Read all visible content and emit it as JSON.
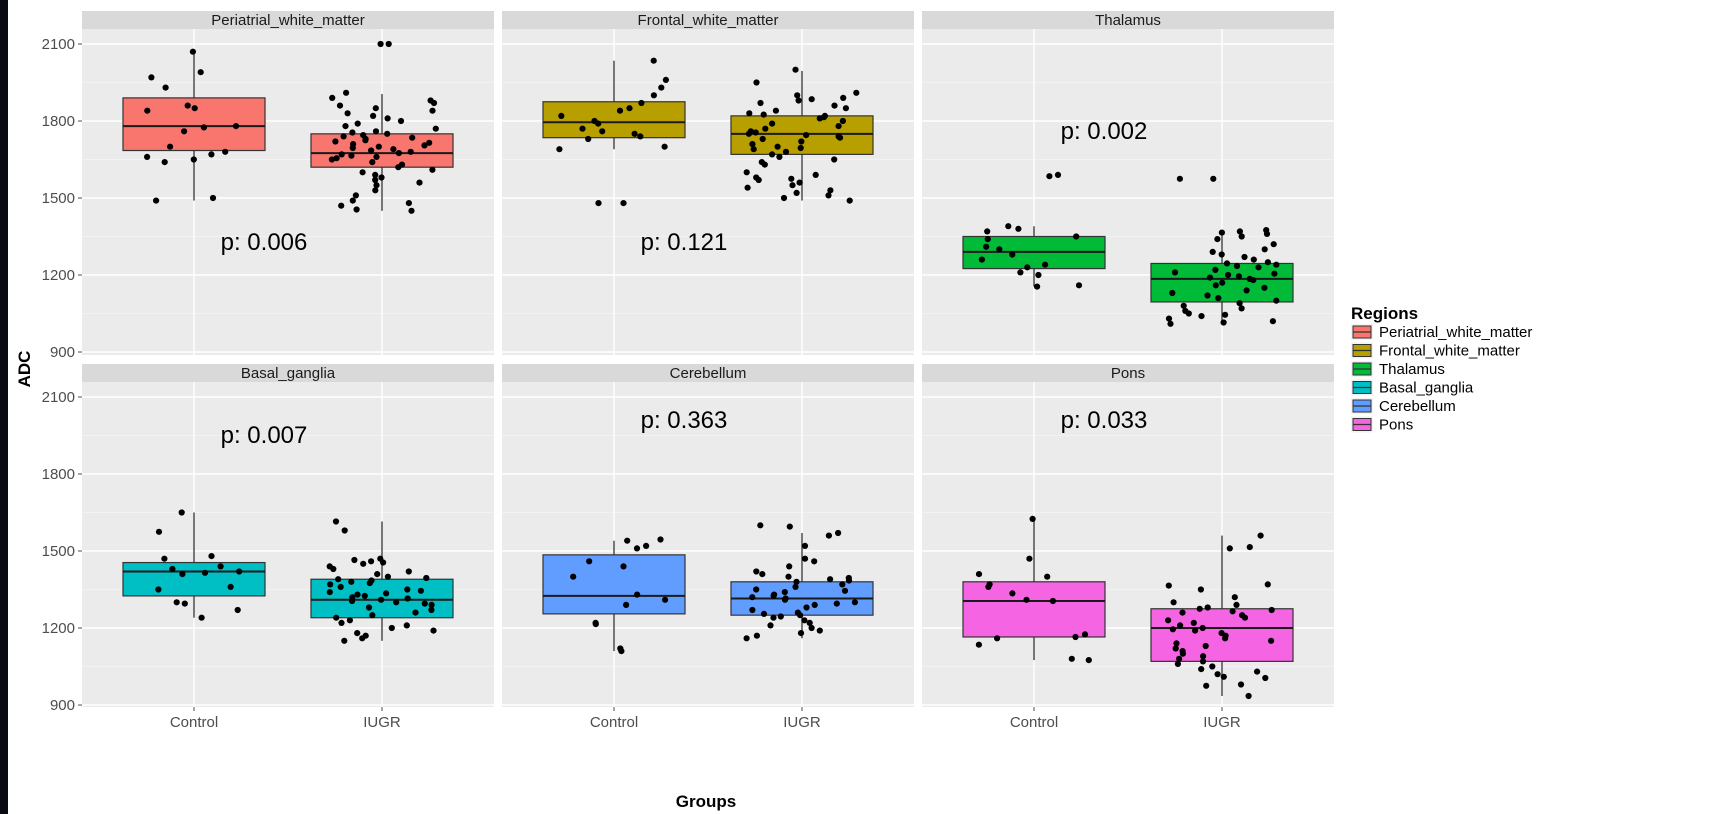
{
  "chart_data": {
    "type": "box",
    "xlabel": "Groups",
    "ylabel": "ADC",
    "ylim": [
      870,
      2150
    ],
    "yticks": [
      900,
      1200,
      1500,
      1800,
      2100
    ],
    "categories": [
      "Control",
      "IUGR"
    ],
    "legend": {
      "title": "Regions",
      "placement": "right",
      "entries": [
        "Periatrial_white_matter",
        "Frontal_white_matter",
        "Thalamus",
        "Basal_ganglia",
        "Cerebellum",
        "Pons"
      ]
    },
    "facets": [
      {
        "title": "Periatrial_white_matter",
        "color": "#F8766D",
        "p_value": "p: 0.006",
        "boxes": [
          {
            "group": "Control",
            "min": 1490,
            "q1": 1685,
            "median": 1780,
            "q3": 1890,
            "max": 2070,
            "points": [
              2070,
              1990,
              1970,
              1930,
              1860,
              1850,
              1840,
              1780,
              1775,
              1760,
              1700,
              1680,
              1670,
              1660,
              1650,
              1640,
              1500,
              1490
            ]
          },
          {
            "group": "IUGR",
            "min": 1450,
            "q1": 1620,
            "median": 1675,
            "q3": 1750,
            "max": 1905,
            "points": [
              2100,
              2100,
              1910,
              1890,
              1880,
              1870,
              1860,
              1850,
              1840,
              1830,
              1820,
              1810,
              1800,
              1790,
              1780,
              1770,
              1760,
              1755,
              1750,
              1745,
              1740,
              1735,
              1730,
              1725,
              1720,
              1715,
              1710,
              1705,
              1700,
              1695,
              1690,
              1685,
              1680,
              1675,
              1670,
              1665,
              1660,
              1655,
              1650,
              1640,
              1630,
              1620,
              1610,
              1600,
              1590,
              1580,
              1570,
              1560,
              1550,
              1530,
              1510,
              1490,
              1480,
              1470,
              1455,
              1450
            ]
          }
        ]
      },
      {
        "title": "Frontal_white_matter",
        "color": "#B79F00",
        "p_value": "p: 0.121",
        "boxes": [
          {
            "group": "Control",
            "min": 1690,
            "q1": 1735,
            "median": 1795,
            "q3": 1875,
            "max": 2035,
            "points": [
              2035,
              1960,
              1930,
              1900,
              1870,
              1850,
              1840,
              1820,
              1800,
              1790,
              1770,
              1760,
              1750,
              1740,
              1730,
              1700,
              1690,
              1480,
              1480
            ]
          },
          {
            "group": "IUGR",
            "min": 1490,
            "q1": 1670,
            "median": 1750,
            "q3": 1820,
            "max": 1995,
            "points": [
              2000,
              1950,
              1910,
              1900,
              1890,
              1885,
              1880,
              1870,
              1860,
              1850,
              1840,
              1830,
              1825,
              1820,
              1815,
              1810,
              1800,
              1790,
              1780,
              1770,
              1760,
              1755,
              1750,
              1745,
              1740,
              1735,
              1730,
              1720,
              1710,
              1700,
              1695,
              1690,
              1680,
              1670,
              1660,
              1650,
              1640,
              1630,
              1600,
              1590,
              1580,
              1575,
              1570,
              1560,
              1550,
              1540,
              1530,
              1520,
              1510,
              1500,
              1490
            ]
          }
        ]
      },
      {
        "title": "Thalamus",
        "color": "#00BA38",
        "p_value": "p: 0.002",
        "boxes": [
          {
            "group": "Control",
            "min": 1155,
            "q1": 1225,
            "median": 1290,
            "q3": 1350,
            "max": 1390,
            "points": [
              1590,
              1585,
              1390,
              1380,
              1370,
              1350,
              1340,
              1310,
              1300,
              1280,
              1260,
              1240,
              1230,
              1210,
              1200,
              1160,
              1155
            ]
          },
          {
            "group": "IUGR",
            "min": 1010,
            "q1": 1095,
            "median": 1185,
            "q3": 1245,
            "max": 1375,
            "points": [
              1575,
              1575,
              1375,
              1370,
              1365,
              1360,
              1350,
              1340,
              1320,
              1300,
              1290,
              1280,
              1270,
              1260,
              1250,
              1245,
              1240,
              1235,
              1230,
              1220,
              1210,
              1205,
              1200,
              1195,
              1190,
              1185,
              1180,
              1170,
              1160,
              1150,
              1140,
              1130,
              1120,
              1110,
              1100,
              1090,
              1080,
              1070,
              1060,
              1050,
              1045,
              1040,
              1030,
              1020,
              1015,
              1010
            ]
          }
        ]
      },
      {
        "title": "Basal_ganglia",
        "color": "#00BFC4",
        "p_value": "p: 0.007",
        "boxes": [
          {
            "group": "Control",
            "min": 1240,
            "q1": 1325,
            "median": 1420,
            "q3": 1455,
            "max": 1650,
            "points": [
              1650,
              1575,
              1480,
              1470,
              1440,
              1430,
              1420,
              1415,
              1410,
              1360,
              1350,
              1300,
              1295,
              1270,
              1240
            ]
          },
          {
            "group": "IUGR",
            "min": 1150,
            "q1": 1240,
            "median": 1310,
            "q3": 1390,
            "max": 1615,
            "points": [
              1615,
              1580,
              1470,
              1465,
              1460,
              1455,
              1450,
              1440,
              1430,
              1420,
              1410,
              1400,
              1395,
              1390,
              1385,
              1380,
              1375,
              1370,
              1360,
              1350,
              1345,
              1340,
              1335,
              1330,
              1325,
              1320,
              1315,
              1310,
              1305,
              1300,
              1295,
              1290,
              1280,
              1270,
              1260,
              1250,
              1240,
              1230,
              1220,
              1210,
              1200,
              1190,
              1180,
              1170,
              1160,
              1150
            ]
          }
        ]
      },
      {
        "title": "Cerebellum",
        "color": "#619CFF",
        "p_value": "p: 0.363",
        "boxes": [
          {
            "group": "Control",
            "min": 1110,
            "q1": 1255,
            "median": 1325,
            "q3": 1485,
            "max": 1540,
            "points": [
              1545,
              1540,
              1520,
              1510,
              1460,
              1440,
              1400,
              1330,
              1310,
              1290,
              1220,
              1215,
              1120,
              1110
            ]
          },
          {
            "group": "IUGR",
            "min": 1160,
            "q1": 1250,
            "median": 1315,
            "q3": 1380,
            "max": 1570,
            "points": [
              1600,
              1595,
              1570,
              1560,
              1520,
              1470,
              1460,
              1440,
              1420,
              1410,
              1400,
              1395,
              1390,
              1385,
              1380,
              1370,
              1360,
              1350,
              1345,
              1340,
              1330,
              1325,
              1320,
              1315,
              1310,
              1300,
              1295,
              1290,
              1280,
              1270,
              1260,
              1255,
              1250,
              1245,
              1240,
              1230,
              1220,
              1210,
              1200,
              1190,
              1180,
              1170,
              1160
            ]
          }
        ]
      },
      {
        "title": "Pons",
        "color": "#F564E3",
        "p_value": "p: 0.033",
        "boxes": [
          {
            "group": "Control",
            "min": 1075,
            "q1": 1165,
            "median": 1305,
            "q3": 1380,
            "max": 1625,
            "points": [
              1625,
              1470,
              1410,
              1400,
              1370,
              1360,
              1335,
              1310,
              1305,
              1175,
              1165,
              1160,
              1135,
              1080,
              1075
            ]
          },
          {
            "group": "IUGR",
            "min": 935,
            "q1": 1070,
            "median": 1200,
            "q3": 1275,
            "max": 1560,
            "points": [
              1560,
              1515,
              1510,
              1370,
              1365,
              1350,
              1320,
              1300,
              1290,
              1280,
              1275,
              1270,
              1265,
              1260,
              1250,
              1240,
              1230,
              1220,
              1210,
              1200,
              1195,
              1190,
              1180,
              1170,
              1160,
              1150,
              1140,
              1130,
              1120,
              1110,
              1100,
              1090,
              1080,
              1070,
              1060,
              1050,
              1040,
              1030,
              1020,
              1010,
              1005,
              980,
              975,
              935
            ]
          }
        ]
      }
    ]
  }
}
